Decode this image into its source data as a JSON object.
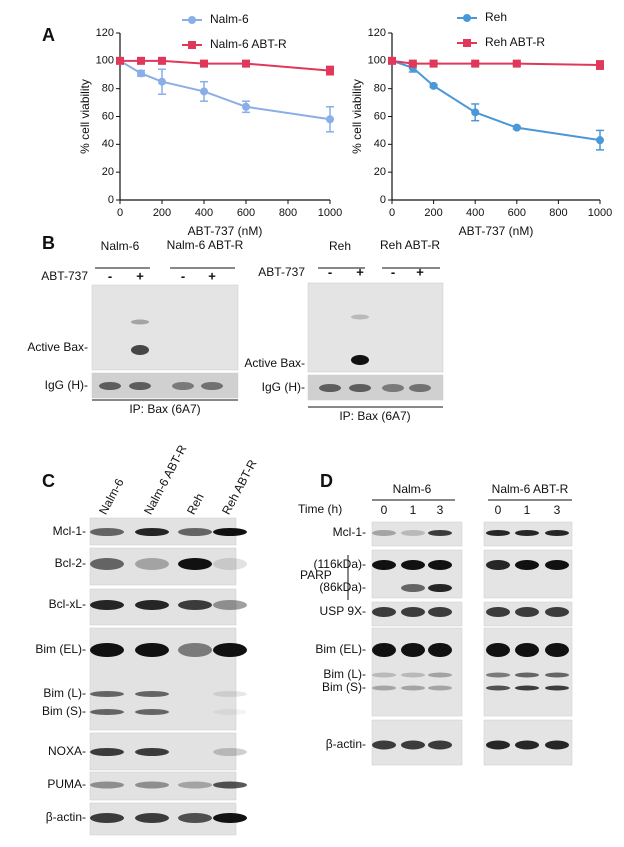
{
  "panel_labels": [
    "A",
    "B",
    "C",
    "D"
  ],
  "chart_data": [
    {
      "type": "line",
      "xlabel": "ABT-737 (nM)",
      "ylabel": "% cell viability",
      "x": [
        0,
        100,
        200,
        400,
        600,
        1000
      ],
      "xlim": [
        0,
        1000
      ],
      "xticks": [
        0,
        200,
        400,
        600,
        800,
        1000
      ],
      "ylim": [
        0,
        120
      ],
      "yticks": [
        0,
        20,
        40,
        60,
        80,
        100,
        120
      ],
      "legend": "top",
      "series": [
        {
          "name": "Nalm-6",
          "color": "#8aaee8",
          "marker": "circle",
          "values": [
            100,
            91,
            85,
            78,
            67,
            58
          ],
          "errors": [
            0,
            2,
            9,
            7,
            4,
            9
          ]
        },
        {
          "name": "Nalm-6 ABT-R",
          "color": "#e0385a",
          "marker": "square",
          "values": [
            100,
            100,
            100,
            98,
            98,
            93
          ],
          "errors": [
            0,
            1,
            1,
            1,
            1,
            3
          ]
        }
      ]
    },
    {
      "type": "line",
      "xlabel": "ABT-737 (nM)",
      "ylabel": "% cell viability",
      "x": [
        0,
        100,
        200,
        400,
        600,
        1000
      ],
      "xlim": [
        0,
        1000
      ],
      "xticks": [
        0,
        200,
        400,
        600,
        800,
        1000
      ],
      "ylim": [
        0,
        120
      ],
      "yticks": [
        0,
        20,
        40,
        60,
        80,
        100,
        120
      ],
      "legend": "top",
      "series": [
        {
          "name": "Reh",
          "color": "#4a98d8",
          "marker": "circle",
          "values": [
            100,
            95,
            82,
            63,
            52,
            43
          ],
          "errors": [
            0,
            3,
            1,
            6,
            1,
            7
          ]
        },
        {
          "name": "Reh ABT-R",
          "color": "#e0385a",
          "marker": "square",
          "values": [
            100,
            98,
            98,
            98,
            98,
            97
          ],
          "errors": [
            0,
            1,
            1,
            1,
            1,
            3
          ]
        }
      ]
    }
  ],
  "panel_b": {
    "left": {
      "columns": [
        "Nalm-6",
        "Nalm-6 ABT-R"
      ],
      "treatment": "ABT-737",
      "signs": [
        "-",
        "+",
        "-",
        "+"
      ],
      "rows": [
        "Active Bax-",
        "IgG (H)-"
      ],
      "ip": "IP: Bax (6A7)"
    },
    "right": {
      "columns": [
        "Reh",
        "Reh ABT-R"
      ],
      "treatment": "ABT-737",
      "signs": [
        "-",
        "+",
        "-",
        "+"
      ],
      "rows": [
        "Active Bax-",
        "IgG (H)-"
      ],
      "ip": "IP: Bax (6A7)"
    }
  },
  "panel_c": {
    "columns": [
      "Nalm-6",
      "Nalm-6 ABT-R",
      "Reh",
      "Reh ABT-R"
    ],
    "rows": [
      "Mcl-1-",
      "Bcl-2-",
      "Bcl-xL-",
      "Bim (EL)-",
      "Bim (L)-",
      "Bim (S)-",
      "NOXA-",
      "PUMA-",
      "β-actin-"
    ]
  },
  "panel_d": {
    "groups": [
      "Nalm-6",
      "Nalm-6 ABT-R"
    ],
    "time_label": "Time (h)",
    "times": [
      0,
      1,
      3,
      0,
      1,
      3
    ],
    "parp": "PARP",
    "rows": [
      "Mcl-1-",
      "(116kDa)-",
      "(86kDa)-",
      "USP 9X-",
      "Bim (EL)-",
      "Bim (L)-",
      "Bim (S)-",
      "β-actin-"
    ]
  }
}
